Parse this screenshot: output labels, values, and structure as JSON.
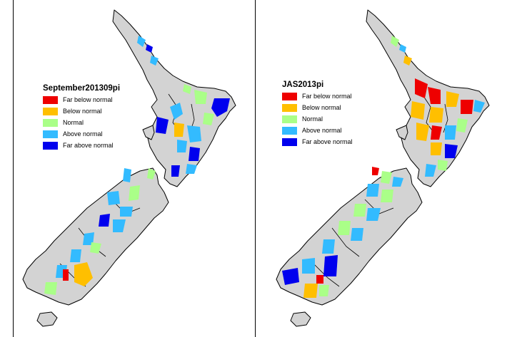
{
  "colors": {
    "far_below": "#ee0000",
    "below": "#ffbf00",
    "normal": "#aaff88",
    "above": "#33bbff",
    "far_above": "#0000ee",
    "land": "#d3d3d3"
  },
  "panels": [
    {
      "legend": {
        "title": "September201309pi",
        "items": [
          {
            "label": "Far below normal",
            "color": "#ee0000"
          },
          {
            "label": "Below normal",
            "color": "#ffbf00"
          },
          {
            "label": "Normal",
            "color": "#aaff88"
          },
          {
            "label": "Above normal",
            "color": "#33bbff"
          },
          {
            "label": "Far above normal",
            "color": "#0000ee"
          }
        ]
      }
    },
    {
      "legend": {
        "title": "JAS2013pi",
        "items": [
          {
            "label": "Far below normal",
            "color": "#ee0000"
          },
          {
            "label": "Below normal",
            "color": "#ffbf00"
          },
          {
            "label": "Normal",
            "color": "#aaff88"
          },
          {
            "label": "Above normal",
            "color": "#33bbff"
          },
          {
            "label": "Far above normal",
            "color": "#0000ee"
          }
        ]
      }
    }
  ]
}
